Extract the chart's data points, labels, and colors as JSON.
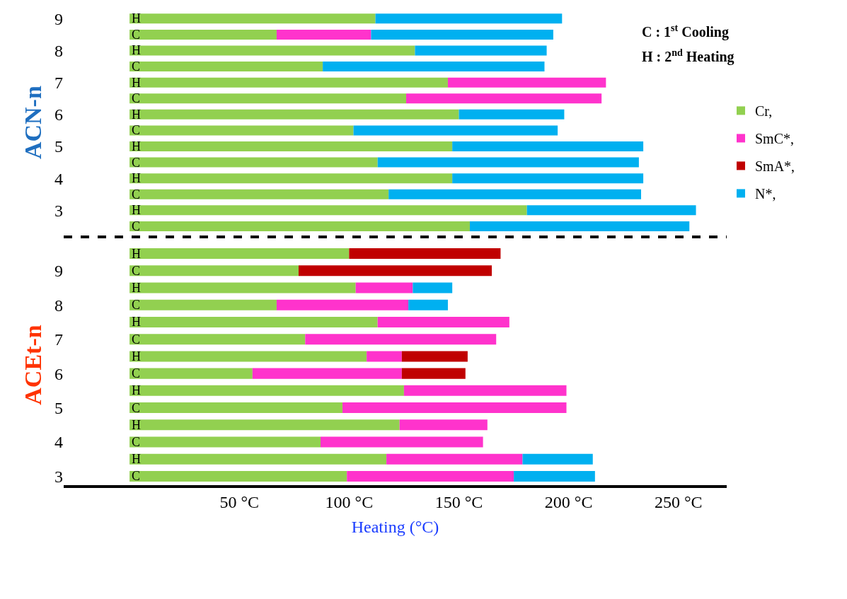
{
  "chart_data": [
    {
      "type": "bar",
      "orientation": "horizontal",
      "stacked": true,
      "ylabel": "ACN-n",
      "tick_labels": "y",
      "legend": "right",
      "categories": [
        "9",
        null,
        "8",
        null,
        "7",
        null,
        "6",
        null,
        "5",
        null,
        "4",
        null,
        "3",
        null
      ],
      "xlim": [
        -30,
        272
      ],
      "annotations": [
        "C : 1$^{st}$ Cooling",
        "H : 2$^{nd}$ Heating"
      ],
      "series": [
        {
          "name": "Cr,",
          "color": "#92d050",
          "values": [
            112,
            67,
            130,
            88,
            145,
            126,
            150,
            102,
            147,
            113,
            147,
            118,
            181,
            155
          ],
          "value_labels": [
            "H",
            "C",
            "H",
            "C",
            "H",
            "C",
            "H",
            "C",
            "H",
            "C",
            "H",
            "C",
            "H",
            "C"
          ]
        },
        {
          "name": "SmC*,",
          "color": "#ff33cc",
          "values": [
            null,
            43,
            null,
            null,
            72,
            89,
            null,
            null,
            null,
            null,
            null,
            null,
            null,
            null
          ]
        },
        {
          "name": "N*,",
          "color": "#00b0f0",
          "values": [
            85,
            83,
            60,
            101,
            null,
            null,
            48,
            93,
            87,
            119,
            87,
            115,
            77,
            100
          ]
        }
      ]
    },
    {
      "type": "bar",
      "orientation": "horizontal",
      "stacked": true,
      "ylabel": "ACEt-n",
      "xlabel": "Heating (°C)",
      "categories": [
        null,
        "9",
        null,
        "8",
        null,
        "7",
        null,
        "6",
        null,
        "5",
        null,
        "4",
        null,
        "3"
      ],
      "xlim": [
        -30,
        272
      ],
      "xticks": [
        {
          "value": 50,
          "label": "50 °C"
        },
        {
          "value": 100,
          "label": "100 °C"
        },
        {
          "value": 150,
          "label": "150 °C"
        },
        {
          "value": 200,
          "label": "200 °C"
        },
        {
          "value": 250,
          "label": "250 °C"
        }
      ],
      "series": [
        {
          "name": "Cr,",
          "color": "#92d050",
          "values": [
            100,
            77,
            103,
            67,
            113,
            80,
            108,
            56,
            125,
            97,
            123,
            87,
            117,
            99
          ],
          "value_labels": [
            "H",
            "C",
            "H",
            "C",
            "H",
            "C",
            "H",
            "C",
            "H",
            "C",
            "H",
            "C",
            "H",
            "C"
          ]
        },
        {
          "name": "SmC*,",
          "color": "#ff33cc",
          "values": [
            null,
            null,
            26,
            60,
            60,
            87,
            16,
            68,
            74,
            102,
            40,
            74,
            62,
            76
          ]
        },
        {
          "name": "SmA*,",
          "color": "#c00000",
          "values": [
            69,
            88,
            null,
            null,
            null,
            null,
            30,
            29,
            null,
            null,
            null,
            null,
            null,
            null
          ]
        },
        {
          "name": "N*,",
          "color": "#00b0f0",
          "values": [
            null,
            null,
            18,
            18,
            null,
            null,
            null,
            null,
            null,
            null,
            null,
            null,
            32,
            37
          ]
        }
      ]
    }
  ]
}
